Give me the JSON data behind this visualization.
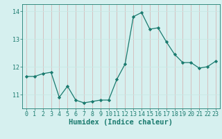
{
  "x": [
    0,
    1,
    2,
    3,
    4,
    5,
    6,
    7,
    8,
    9,
    10,
    11,
    12,
    13,
    14,
    15,
    16,
    17,
    18,
    19,
    20,
    21,
    22,
    23
  ],
  "y": [
    11.65,
    11.65,
    11.75,
    11.8,
    10.9,
    11.3,
    10.8,
    10.7,
    10.75,
    10.8,
    10.8,
    11.55,
    12.1,
    13.8,
    13.95,
    13.35,
    13.4,
    12.9,
    12.45,
    12.15,
    12.15,
    11.95,
    12.0,
    12.2
  ],
  "line_color": "#1a7a6e",
  "marker": "D",
  "marker_size": 2.2,
  "bg_color": "#d6f0ef",
  "grid_color": "#c8e8e5",
  "axis_color": "#1a7a6e",
  "xlabel": "Humidex (Indice chaleur)",
  "ylim": [
    10.5,
    14.25
  ],
  "xlim": [
    -0.5,
    23.5
  ],
  "yticks": [
    11,
    12,
    13,
    14
  ],
  "xticks": [
    0,
    1,
    2,
    3,
    4,
    5,
    6,
    7,
    8,
    9,
    10,
    11,
    12,
    13,
    14,
    15,
    16,
    17,
    18,
    19,
    20,
    21,
    22,
    23
  ],
  "tick_fontsize": 6.0,
  "label_fontsize": 7.5
}
